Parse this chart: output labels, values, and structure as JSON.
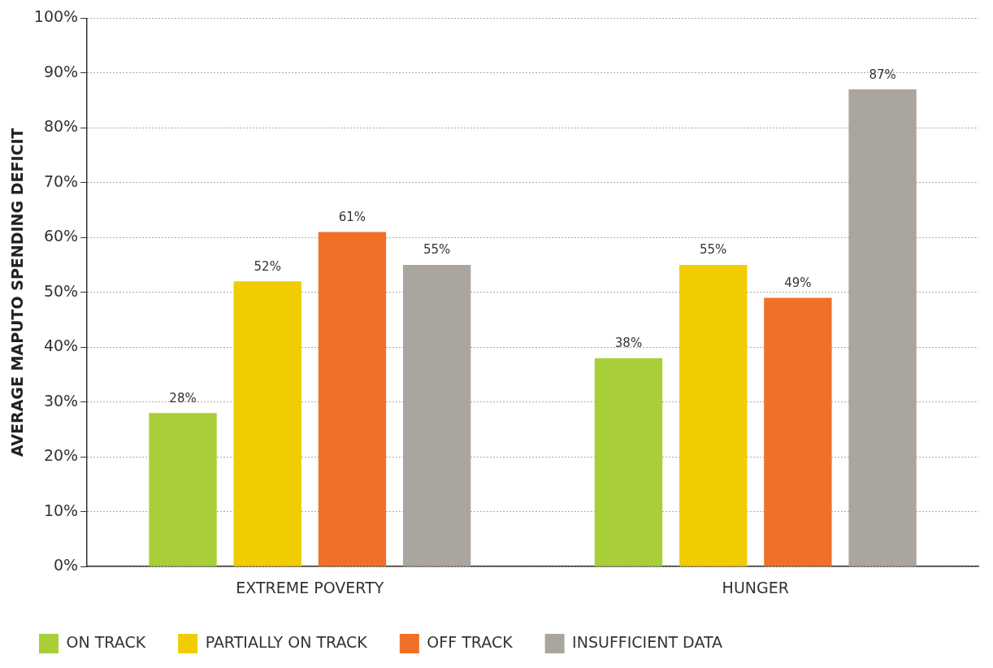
{
  "chart_data": {
    "type": "bar",
    "ylabel": "AVERAGE MAPUTO SPENDING DEFICIT",
    "categories": [
      "EXTREME POVERTY",
      "HUNGER"
    ],
    "series": [
      {
        "name": "ON TRACK",
        "color": "#a8cf38",
        "values": [
          28,
          38
        ],
        "value_labels": [
          "28%",
          "38%"
        ]
      },
      {
        "name": "PARTIALLY ON TRACK",
        "color": "#f0cc00",
        "values": [
          52,
          55
        ],
        "value_labels": [
          "52%",
          "55%"
        ]
      },
      {
        "name": "OFF TRACK",
        "color": "#f07028",
        "values": [
          61,
          49
        ],
        "value_labels": [
          "61%",
          "49%"
        ]
      },
      {
        "name": "INSUFFICIENT DATA",
        "color": "#aba59f",
        "values": [
          55,
          87
        ],
        "value_labels": [
          "55%",
          "87%"
        ]
      }
    ],
    "ylim": [
      0,
      100
    ],
    "yticks": [
      {
        "value": 0,
        "label": "0%"
      },
      {
        "value": 10,
        "label": "10%"
      },
      {
        "value": 20,
        "label": "20%"
      },
      {
        "value": 30,
        "label": "30%"
      },
      {
        "value": 40,
        "label": "40%"
      },
      {
        "value": 50,
        "label": "50%"
      },
      {
        "value": 60,
        "label": "60%"
      },
      {
        "value": 70,
        "label": "70%"
      },
      {
        "value": 80,
        "label": "80%"
      },
      {
        "value": 90,
        "label": "90%"
      },
      {
        "value": 100,
        "label": "100%"
      }
    ],
    "grid": "y",
    "legend": "bottom left"
  }
}
